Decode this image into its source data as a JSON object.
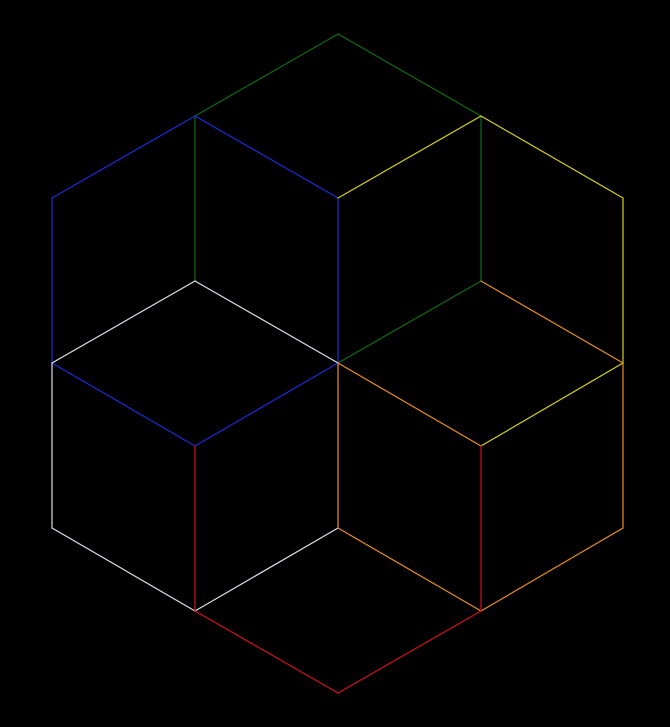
{
  "background": "#000000",
  "diagram": {
    "description_colors": {
      "green": "#0f6b12",
      "blue": "#1b2bd6",
      "yellow": "#d6cf22",
      "white": "#d9e2e6",
      "orange": "#e8901f",
      "red": "#d10f1c"
    },
    "rhombi": [
      {
        "name": "rhombus-top-green",
        "color": "green"
      },
      {
        "name": "rhombus-upper-left-blue",
        "color": "blue"
      },
      {
        "name": "rhombus-upper-right-yellow",
        "color": "yellow"
      },
      {
        "name": "rhombus-lower-left-white",
        "color": "white"
      },
      {
        "name": "rhombus-lower-right-orange",
        "color": "orange"
      },
      {
        "name": "rhombus-bottom-red",
        "color": "red"
      }
    ]
  }
}
